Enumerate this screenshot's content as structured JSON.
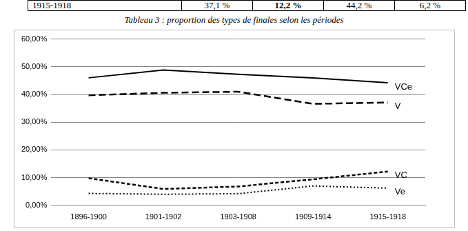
{
  "table": {
    "rows": [
      [
        "1915-1918",
        "37,1 %",
        "12,2 %",
        "44,2 %",
        "6,2 %"
      ]
    ]
  },
  "caption": "Tableau 3 : proportion des types de finales selon les périodes",
  "chart_data": {
    "type": "line",
    "categories": [
      "1896-1900",
      "1901-1902",
      "1903-1908",
      "1909-1914",
      "1915-1918"
    ],
    "series": [
      {
        "name": "VCe",
        "color": "#000000",
        "line_style": "solid",
        "values": [
          46.0,
          48.8,
          47.3,
          46.0,
          44.2
        ]
      },
      {
        "name": "V",
        "color": "#000000",
        "line_style": "longdash",
        "values": [
          39.7,
          40.6,
          41.0,
          36.6,
          37.1
        ]
      },
      {
        "name": "VC",
        "color": "#000000",
        "line_style": "dash",
        "values": [
          9.8,
          5.9,
          6.8,
          9.4,
          12.2
        ]
      },
      {
        "name": "Ve",
        "color": "#000000",
        "line_style": "dot",
        "values": [
          4.3,
          4.0,
          4.2,
          7.0,
          6.2
        ]
      }
    ],
    "ylim": [
      0,
      60
    ],
    "yticks": [
      {
        "value": 0,
        "label": "0,00%"
      },
      {
        "value": 10,
        "label": "10,00%"
      },
      {
        "value": 20,
        "label": "20,00%"
      },
      {
        "value": 30,
        "label": "30,00%"
      },
      {
        "value": 40,
        "label": "40,00%"
      },
      {
        "value": 50,
        "label": "50,00%"
      },
      {
        "value": 60,
        "label": "60,00%"
      }
    ],
    "grid": true
  }
}
